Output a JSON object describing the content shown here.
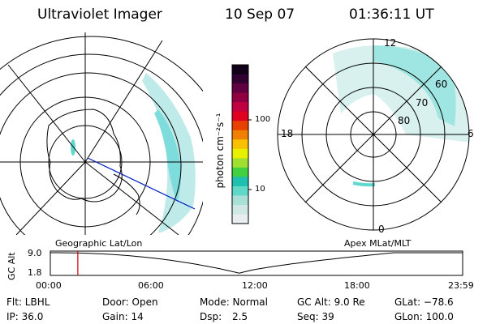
{
  "header": {
    "instrument": "Ultraviolet Imager",
    "date": "10 Sep 07",
    "time": "01:36:11 UT"
  },
  "colorbar": {
    "unit_label": "photon cm⁻²s⁻¹",
    "tick_labels": [
      "100",
      "10"
    ],
    "colors": [
      "#e8eeee",
      "#d0e8e4",
      "#a8e0d8",
      "#60d8c8",
      "#20c0b0",
      "#40d040",
      "#a0e030",
      "#e8f000",
      "#f8c000",
      "#f08000",
      "#e84000",
      "#e00020",
      "#c00040",
      "#900040",
      "#600040",
      "#300030",
      "#100018"
    ]
  },
  "left_map": {
    "label": "Geographic Lat/Lon"
  },
  "right_map": {
    "label": "Apex MLat/MLT",
    "lat_labels": [
      "60",
      "70",
      "80"
    ],
    "mlt_labels": [
      "12",
      "18",
      "6",
      "0"
    ]
  },
  "altitude_plot": {
    "ylabel": "GC Alt",
    "y_ticks": [
      "9.0",
      "1.8"
    ],
    "x_ticks": [
      "00:00",
      "06:00",
      "12:00",
      "18:00",
      "23:59"
    ],
    "marker_time_hours": 1.6,
    "line_color": "#cc0000"
  },
  "status": {
    "filter": "Flt: LBHL",
    "door": "Door: Open",
    "mode": "Mode: Normal",
    "gc_alt": "GC Alt: 9.0 Re",
    "glat": "GLat: −78.6",
    "ip": "IP: 36.0",
    "gain": "Gain: 14",
    "dsp_label": "Dsp:",
    "dsp_value": "2.5",
    "seq": "Seq: 39",
    "glon": "GLon: 100.0"
  }
}
